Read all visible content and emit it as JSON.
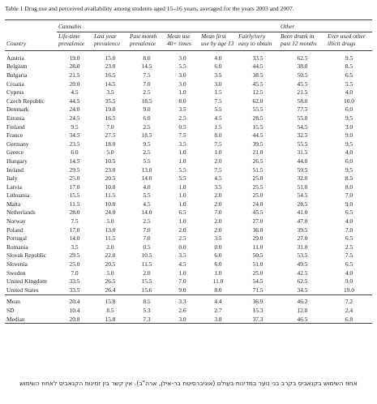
{
  "header": {
    "title": "Table 1 Drug use and perceived availability among students aged 15–16 years, averaged for the years 2003 and 2007."
  },
  "table": {
    "groups": [
      "Cannabis",
      "Other"
    ],
    "columns": [
      "Country",
      "Life-time prevalence",
      "Last year prevalence",
      "Past month prevalence",
      "Mean use 40+ times",
      "Mean first use by age 13",
      "Fairly/very easy to obtain",
      "Been drunk in past 12 months",
      "Ever used other illicit drugs"
    ],
    "rows": [
      [
        "Austria",
        "19.0",
        "15.0",
        "8.0",
        "3.0",
        "4.0",
        "33.5",
        "62.5",
        "9.5"
      ],
      [
        "Belgium",
        "28.0",
        "23.0",
        "14.5",
        "5.5",
        "6.0",
        "44.5",
        "38.0",
        "8.5"
      ],
      [
        "Bulgaria",
        "21.5",
        "16.5",
        "7.5",
        "3.0",
        "3.5",
        "38.5",
        "50.5",
        "6.5"
      ],
      [
        "Croatia",
        "20.0",
        "14.5",
        "7.0",
        "3.0",
        "3.0",
        "45.5",
        "45.5",
        "5.5"
      ],
      [
        "Cyprus",
        "4.5",
        "3.5",
        "2.5",
        "1.0",
        "1.5",
        "12.5",
        "21.5",
        "4.0"
      ],
      [
        "Czech Republic",
        "44.5",
        "35.5",
        "18.5",
        "8.0",
        "7.5",
        "62.0",
        "58.0",
        "10.0"
      ],
      [
        "Denmark",
        "24.0",
        "19.0",
        "9.0",
        "3.5",
        "5.5",
        "55.5",
        "77.5",
        "6.0"
      ],
      [
        "Estonia",
        "24.5",
        "16.5",
        "6.0",
        "2.5",
        "4.5",
        "28.5",
        "55.0",
        "9.5"
      ],
      [
        "Finland",
        "9.5",
        "7.0",
        "2.5",
        "0.5",
        "1.5",
        "15.5",
        "54.5",
        "3.0"
      ],
      [
        "France",
        "34.5",
        "27.5",
        "18.5",
        "7.5",
        "8.0",
        "44.5",
        "32.5",
        "9.0"
      ],
      [
        "Germany",
        "23.5",
        "18.0",
        "9.5",
        "3.5",
        "7.5",
        "39.5",
        "55.5",
        "9.5"
      ],
      [
        "Greece",
        "6.0",
        "5.0",
        "2.5",
        "1.0",
        "1.0",
        "21.0",
        "31.5",
        "4.0"
      ],
      [
        "Hungary",
        "14.5",
        "10.5",
        "5.5",
        "1.0",
        "2.0",
        "26.5",
        "44.0",
        "6.0"
      ],
      [
        "Ireland",
        "29.5",
        "23.0",
        "13.0",
        "5.5",
        "7.5",
        "51.5",
        "59.5",
        "9.5"
      ],
      [
        "Italy",
        "25.0",
        "20.5",
        "14.0",
        "5.5",
        "4.5",
        "25.0",
        "32.0",
        "8.5"
      ],
      [
        "Latvia",
        "17.0",
        "10.0",
        "4.0",
        "1.0",
        "3.5",
        "25.5",
        "51.0",
        "8.0"
      ],
      [
        "Lithuania",
        "15.5",
        "11.5",
        "5.5",
        "1.0",
        "2.0",
        "25.0",
        "54.5",
        "7.0"
      ],
      [
        "Malta",
        "11.5",
        "10.0",
        "4.5",
        "1.0",
        "2.0",
        "24.0",
        "28.5",
        "9.0"
      ],
      [
        "Netherlands",
        "28.0",
        "24.0",
        "14.0",
        "6.5",
        "7.0",
        "45.5",
        "41.0",
        "6.5"
      ],
      [
        "Norway",
        "7.5",
        "5.0",
        "2.5",
        "1.0",
        "2.0",
        "27.0",
        "47.0",
        "4.0"
      ],
      [
        "Poland",
        "17.0",
        "13.0",
        "7.0",
        "2.0",
        "2.0",
        "36.0",
        "39.5",
        "7.0"
      ],
      [
        "Portugal",
        "14.0",
        "11.5",
        "7.0",
        "2.5",
        "3.5",
        "29.0",
        "27.0",
        "6.5"
      ],
      [
        "Romania",
        "3.5",
        "2.0",
        "0.5",
        "0.0",
        "0.0",
        "11.0",
        "31.0",
        "2.5"
      ],
      [
        "Slovak Republic",
        "29.5",
        "22.0",
        "10.5",
        "3.5",
        "6.0",
        "50.5",
        "53.5",
        "7.5"
      ],
      [
        "Slovenia",
        "25.0",
        "20.5",
        "11.5",
        "4.5",
        "6.0",
        "51.0",
        "49.5",
        "6.5"
      ],
      [
        "Sweden",
        "7.0",
        "5.0",
        "2.0",
        "1.0",
        "1.0",
        "25.0",
        "42.5",
        "4.0"
      ],
      [
        "United Kingdom",
        "33.5",
        "26.5",
        "15.5",
        "7.0",
        "11.0",
        "54.5",
        "62.5",
        "9.0"
      ],
      [
        "United States",
        "33.5",
        "26.4",
        "15.6",
        "9.0",
        "8.0",
        "71.5",
        "34.5",
        "19.0"
      ]
    ],
    "summary": [
      [
        "Mean",
        "20.4",
        "15.8",
        "8.5",
        "3.3",
        "4.4",
        "36.9",
        "46.2",
        "7.2"
      ],
      [
        "SD",
        "10.4",
        "8.5",
        "5.3",
        "2.6",
        "2.7",
        "15.3",
        "12.8",
        "2.4"
      ],
      [
        "Median",
        "20.8",
        "15.8",
        "7.3",
        "3.0",
        "3.8",
        "37.3",
        "46.5",
        "6.8"
      ]
    ]
  },
  "caption": "אחוז השימוש בקנאביס בקרב בני נוער במדינות בעולם (אוניברסיטת בר-אילן, ארה\"ב). אין קשר בין זמינות הקנאביס לאחוז השימוש"
}
